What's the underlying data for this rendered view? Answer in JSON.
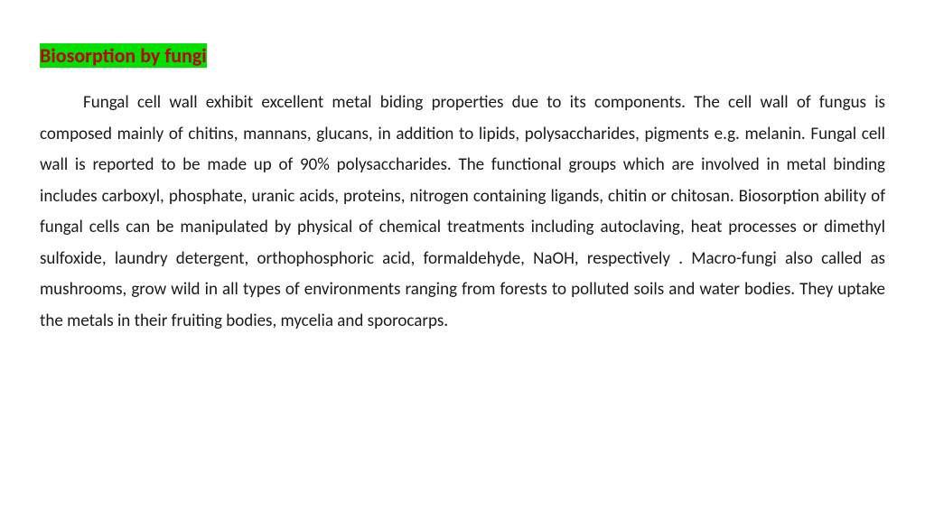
{
  "heading": {
    "text": "Biosorption by fungi",
    "text_color": "#c00000",
    "highlight_color": "#00e000"
  },
  "body": {
    "text": "Fungal cell wall exhibit excellent metal biding properties due to its components. The cell wall of fungus is composed mainly of chitins, mannans, glucans, in addition to lipids, polysaccharides, pigments e.g. melanin. Fungal cell wall is reported to be made up of 90% polysaccharides. The functional groups which are involved in metal binding includes carboxyl, phosphate, uranic acids, proteins, nitrogen containing ligands, chitin or chitosan. Biosorption ability of fungal cells can be manipulated by physical of chemical treatments including autoclaving, heat processes or dimethyl sulfoxide, laundry detergent, orthophosphoric acid, formaldehyde, NaOH, respectively . Macro-fungi also called as mushrooms, grow wild in all types of environments ranging from forests to polluted soils and water bodies. They uptake the metals in their fruiting bodies, mycelia and sporocarps.",
    "text_color": "#1a1a1a"
  },
  "page": {
    "background_color": "#ffffff",
    "body_fontsize": 19,
    "heading_fontsize": 22,
    "line_height": 1.82
  }
}
